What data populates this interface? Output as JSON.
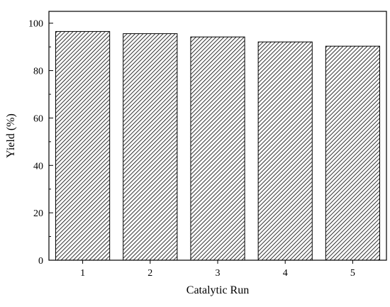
{
  "chart_data": {
    "type": "bar",
    "xlabel": "Catalytic Run",
    "ylabel": "Yield (%)",
    "categories": [
      "1",
      "2",
      "3",
      "4",
      "5"
    ],
    "values": [
      96.5,
      95.6,
      94.2,
      92.1,
      90.3
    ],
    "ylim": [
      0,
      105
    ],
    "yticks": [
      0,
      20,
      40,
      60,
      80,
      100
    ],
    "grid": false,
    "legend": "none",
    "bar_fill": "diagonal hatch",
    "colors": {
      "bar_stroke": "#000000",
      "hatch": "#000000",
      "background": "#ffffff",
      "axis": "#000000"
    }
  }
}
